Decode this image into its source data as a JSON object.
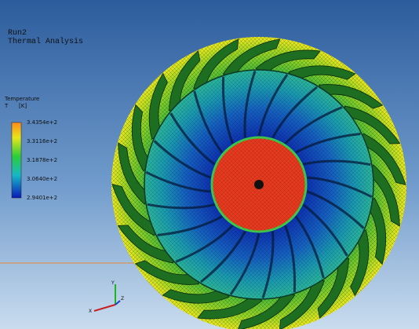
{
  "header": {
    "run": "Run2",
    "analysis": "Thermal Analysis"
  },
  "legend": {
    "title": "Temperature",
    "symbol": "T",
    "unit": "[K]",
    "labels": [
      "3.4354e+2",
      "3.3116e+2",
      "3.1878e+2",
      "3.0640e+2",
      "2.9401e+2"
    ]
  },
  "triad": {
    "y": "Y",
    "x": "X",
    "z": "Z"
  }
}
